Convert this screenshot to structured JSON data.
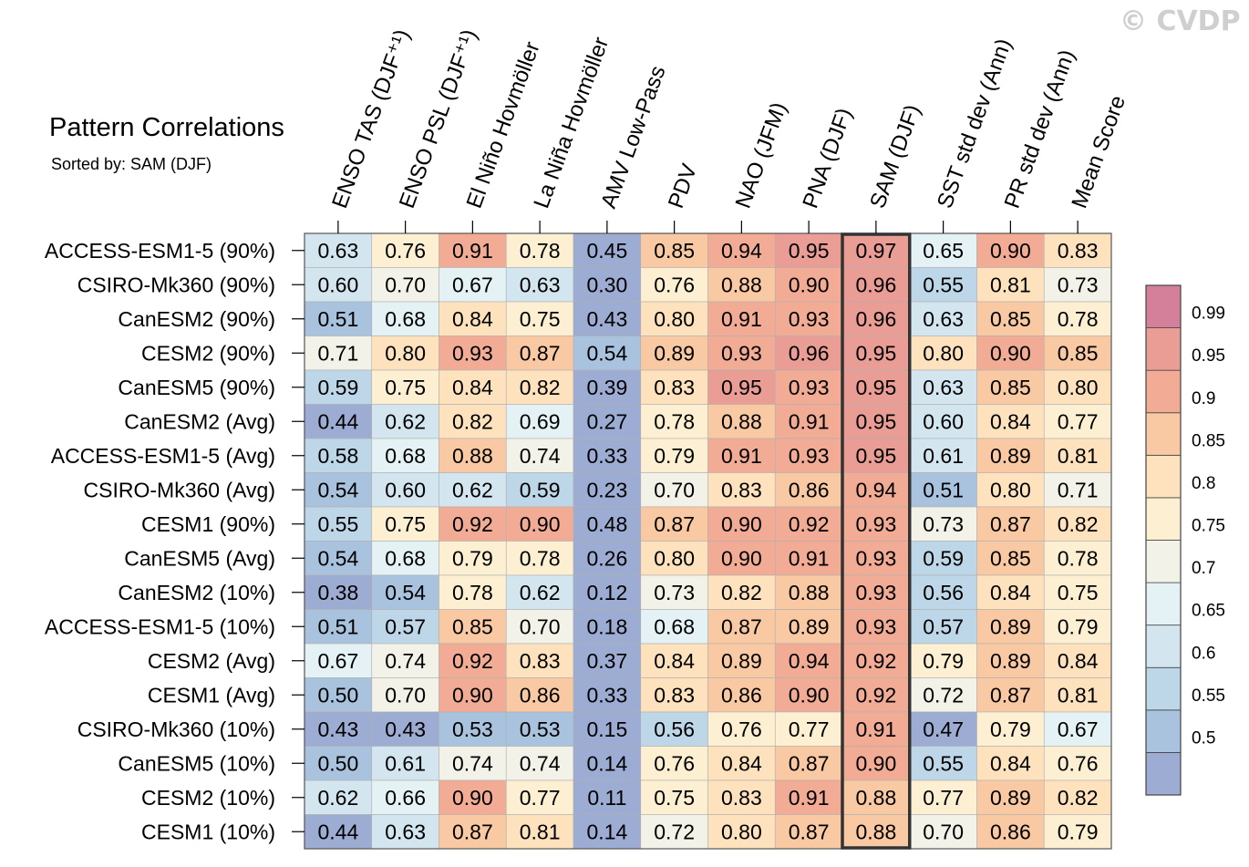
{
  "watermark": "© CVDP",
  "title": "Pattern Correlations",
  "subtitle": "Sorted by: SAM (DJF)",
  "chart_data": {
    "type": "heatmap",
    "columns": [
      "ENSO TAS (DJF⁺¹)",
      "ENSO PSL (DJF⁺¹)",
      "El Niño Hovmöller",
      "La Niña Hovmöller",
      "AMV Low-Pass",
      "PDV",
      "NAO (JFM)",
      "PNA (DJF)",
      "SAM (DJF)",
      "SST std dev (Ann)",
      "PR std dev (Ann)",
      "Mean Score"
    ],
    "sorted_column": "SAM (DJF)",
    "rows": [
      {
        "name": "ACCESS-ESM1-5 (90%)",
        "values": [
          0.63,
          0.76,
          0.91,
          0.78,
          0.45,
          0.85,
          0.94,
          0.95,
          0.97,
          0.65,
          0.9,
          0.83
        ]
      },
      {
        "name": "CSIRO-Mk360 (90%)",
        "values": [
          0.6,
          0.7,
          0.67,
          0.63,
          0.3,
          0.76,
          0.88,
          0.9,
          0.96,
          0.55,
          0.81,
          0.73
        ]
      },
      {
        "name": "CanESM2 (90%)",
        "values": [
          0.51,
          0.68,
          0.84,
          0.75,
          0.43,
          0.8,
          0.91,
          0.93,
          0.96,
          0.63,
          0.85,
          0.78
        ]
      },
      {
        "name": "CESM2 (90%)",
        "values": [
          0.71,
          0.8,
          0.93,
          0.87,
          0.54,
          0.89,
          0.93,
          0.96,
          0.95,
          0.8,
          0.9,
          0.85
        ]
      },
      {
        "name": "CanESM5 (90%)",
        "values": [
          0.59,
          0.75,
          0.84,
          0.82,
          0.39,
          0.83,
          0.95,
          0.93,
          0.95,
          0.63,
          0.85,
          0.8
        ]
      },
      {
        "name": "CanESM2 (Avg)",
        "values": [
          0.44,
          0.62,
          0.82,
          0.69,
          0.27,
          0.78,
          0.88,
          0.91,
          0.95,
          0.6,
          0.84,
          0.77
        ]
      },
      {
        "name": "ACCESS-ESM1-5 (Avg)",
        "values": [
          0.58,
          0.68,
          0.88,
          0.74,
          0.33,
          0.79,
          0.91,
          0.93,
          0.95,
          0.61,
          0.89,
          0.81
        ]
      },
      {
        "name": "CSIRO-Mk360 (Avg)",
        "values": [
          0.54,
          0.6,
          0.62,
          0.59,
          0.23,
          0.7,
          0.83,
          0.86,
          0.94,
          0.51,
          0.8,
          0.71
        ]
      },
      {
        "name": "CESM1 (90%)",
        "values": [
          0.55,
          0.75,
          0.92,
          0.9,
          0.48,
          0.87,
          0.9,
          0.92,
          0.93,
          0.73,
          0.87,
          0.82
        ]
      },
      {
        "name": "CanESM5 (Avg)",
        "values": [
          0.54,
          0.68,
          0.79,
          0.78,
          0.26,
          0.8,
          0.9,
          0.91,
          0.93,
          0.59,
          0.85,
          0.78
        ]
      },
      {
        "name": "CanESM2 (10%)",
        "values": [
          0.38,
          0.54,
          0.78,
          0.62,
          0.12,
          0.73,
          0.82,
          0.88,
          0.93,
          0.56,
          0.84,
          0.75
        ]
      },
      {
        "name": "ACCESS-ESM1-5 (10%)",
        "values": [
          0.51,
          0.57,
          0.85,
          0.7,
          0.18,
          0.68,
          0.87,
          0.89,
          0.93,
          0.57,
          0.89,
          0.79
        ]
      },
      {
        "name": "CESM2 (Avg)",
        "values": [
          0.67,
          0.74,
          0.92,
          0.83,
          0.37,
          0.84,
          0.89,
          0.94,
          0.92,
          0.79,
          0.89,
          0.84
        ]
      },
      {
        "name": "CESM1 (Avg)",
        "values": [
          0.5,
          0.7,
          0.9,
          0.86,
          0.33,
          0.83,
          0.86,
          0.9,
          0.92,
          0.72,
          0.87,
          0.81
        ]
      },
      {
        "name": "CSIRO-Mk360 (10%)",
        "values": [
          0.43,
          0.43,
          0.53,
          0.53,
          0.15,
          0.56,
          0.76,
          0.77,
          0.91,
          0.47,
          0.79,
          0.67
        ]
      },
      {
        "name": "CanESM5 (10%)",
        "values": [
          0.5,
          0.61,
          0.74,
          0.74,
          0.14,
          0.76,
          0.84,
          0.87,
          0.9,
          0.55,
          0.84,
          0.76
        ]
      },
      {
        "name": "CESM2 (10%)",
        "values": [
          0.62,
          0.66,
          0.9,
          0.77,
          0.11,
          0.75,
          0.83,
          0.91,
          0.88,
          0.77,
          0.89,
          0.82
        ]
      },
      {
        "name": "CESM1 (10%)",
        "values": [
          0.44,
          0.63,
          0.87,
          0.81,
          0.14,
          0.72,
          0.8,
          0.87,
          0.88,
          0.7,
          0.86,
          0.79
        ]
      }
    ],
    "colorbar": {
      "levels": [
        "0.5",
        "0.55",
        "0.6",
        "0.65",
        "0.7",
        "0.75",
        "0.8",
        "0.85",
        "0.9",
        "0.95",
        "0.99"
      ],
      "level_values": [
        0.5,
        0.55,
        0.6,
        0.65,
        0.7,
        0.75,
        0.8,
        0.85,
        0.9,
        0.95,
        0.99
      ],
      "colors": [
        "#9dacd3",
        "#a9c3df",
        "#bdd6e8",
        "#d3e6f0",
        "#e4f1f5",
        "#f2f2e8",
        "#fdf0d2",
        "#fde2bd",
        "#f9c9a3",
        "#f2ac95",
        "#ea9d95",
        "#d4809a"
      ]
    }
  }
}
